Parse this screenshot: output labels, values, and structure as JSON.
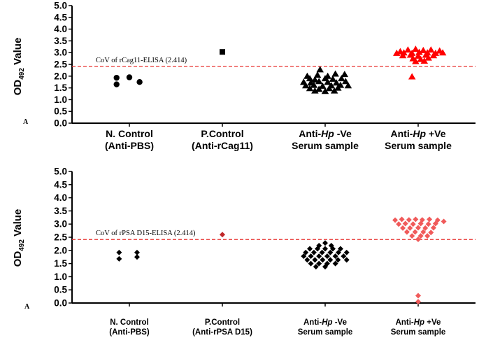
{
  "chart_data": [
    {
      "type": "scatter",
      "panel_label": "A",
      "ylabel_main": "OD",
      "ylabel_sub": "492",
      "ylabel_suffix": " Value",
      "ylim": [
        0,
        5
      ],
      "yticks": [
        "0.0",
        "0.5",
        "1.0",
        "1.5",
        "2.0",
        "2.5",
        "3.0",
        "3.5",
        "4.0",
        "4.5",
        "5.0"
      ],
      "cutoff": {
        "value": 2.414,
        "label": "CoV of rCag11-ELISA (2.414)",
        "color": "#e8312f"
      },
      "categories": [
        {
          "line1": "N. Control",
          "line2": "(Anti-PBS)",
          "line1_parts": [
            "N. Control"
          ]
        },
        {
          "line1": "P.Control",
          "line2": "(Anti-rCag11)",
          "line1_parts": [
            "P.Control"
          ]
        },
        {
          "line1_parts": [
            "Anti-",
            "Hp",
            " -Ve"
          ],
          "line2": "Serum sample"
        },
        {
          "line1_parts": [
            "Anti-",
            "Hp",
            " +Ve"
          ],
          "line2": "Serum sample"
        }
      ],
      "series": [
        {
          "name": "N. Control (Anti-PBS)",
          "marker": "circle",
          "color": "#000000",
          "points": [
            [
              -0.25,
              1.93
            ],
            [
              0.0,
              1.95
            ],
            [
              -0.25,
              1.65
            ],
            [
              0.2,
              1.75
            ]
          ]
        },
        {
          "name": "P.Control (Anti-rCag11)",
          "marker": "square",
          "color": "#000000",
          "points": [
            [
              0.0,
              3.03
            ]
          ]
        },
        {
          "name": "Anti-Hp -Ve Serum sample",
          "marker": "triangle",
          "color": "#000000",
          "points": [
            [
              -0.1,
              2.28
            ],
            [
              -0.35,
              2.0
            ],
            [
              -0.15,
              2.05
            ],
            [
              0.05,
              2.0
            ],
            [
              0.2,
              2.1
            ],
            [
              0.38,
              2.08
            ],
            [
              -0.3,
              1.9
            ],
            [
              -0.2,
              1.85
            ],
            [
              0.0,
              1.9
            ],
            [
              0.15,
              1.88
            ],
            [
              0.32,
              1.9
            ],
            [
              -0.42,
              1.75
            ],
            [
              -0.28,
              1.72
            ],
            [
              -0.12,
              1.78
            ],
            [
              0.05,
              1.75
            ],
            [
              0.22,
              1.72
            ],
            [
              0.4,
              1.78
            ],
            [
              -0.38,
              1.6
            ],
            [
              -0.22,
              1.62
            ],
            [
              -0.05,
              1.58
            ],
            [
              0.12,
              1.6
            ],
            [
              0.3,
              1.62
            ],
            [
              0.45,
              1.6
            ],
            [
              -0.3,
              1.48
            ],
            [
              -0.12,
              1.45
            ],
            [
              0.08,
              1.48
            ],
            [
              0.25,
              1.5
            ],
            [
              -0.2,
              1.38
            ],
            [
              0.0,
              1.36
            ],
            [
              0.18,
              1.38
            ]
          ]
        },
        {
          "name": "Anti-Hp +Ve Serum sample",
          "marker": "triangle",
          "color": "#ff0000",
          "points": [
            [
              -0.35,
              3.05
            ],
            [
              -0.2,
              3.12
            ],
            [
              -0.05,
              3.15
            ],
            [
              0.1,
              3.1
            ],
            [
              0.25,
              3.12
            ],
            [
              0.42,
              3.08
            ],
            [
              -0.42,
              2.98
            ],
            [
              -0.28,
              3.0
            ],
            [
              -0.12,
              2.98
            ],
            [
              0.02,
              3.02
            ],
            [
              0.18,
              3.0
            ],
            [
              0.34,
              2.98
            ],
            [
              0.48,
              3.0
            ],
            [
              -0.3,
              2.88
            ],
            [
              -0.15,
              2.9
            ],
            [
              0.0,
              2.86
            ],
            [
              0.15,
              2.9
            ],
            [
              0.3,
              2.88
            ],
            [
              -0.1,
              2.75
            ],
            [
              0.05,
              2.72
            ],
            [
              0.2,
              2.78
            ],
            [
              -0.05,
              2.63
            ],
            [
              0.12,
              2.65
            ],
            [
              -0.12,
              1.98
            ]
          ]
        }
      ]
    },
    {
      "type": "scatter",
      "panel_label": "A",
      "ylabel_main": "OD",
      "ylabel_sub": "492",
      "ylabel_suffix": " Value",
      "ylim": [
        0,
        5
      ],
      "yticks": [
        "0.0",
        "0.5",
        "1.0",
        "1.5",
        "2.0",
        "2.5",
        "3.0",
        "3.5",
        "4.0",
        "4.5",
        "5.0"
      ],
      "cutoff": {
        "value": 2.414,
        "label": "CoV of rPSA D15-ELISA (2.414)",
        "color": "#e8312f"
      },
      "categories": [
        {
          "line1_parts": [
            "N. Control"
          ],
          "line2": "(Anti-PBS)"
        },
        {
          "line1_parts": [
            "P.Control"
          ],
          "line2": "(Anti-rPSA D15)"
        },
        {
          "line1_parts": [
            "Anti-",
            "Hp",
            " -Ve"
          ],
          "line2": "Serum sample"
        },
        {
          "line1_parts": [
            "Anti-",
            "Hp",
            " +Ve"
          ],
          "line2": "Serum sample"
        }
      ],
      "series": [
        {
          "name": "N. Control (Anti-PBS)",
          "marker": "diamond",
          "color": "#000000",
          "points": [
            [
              -0.2,
              1.92
            ],
            [
              0.15,
              1.92
            ],
            [
              -0.2,
              1.68
            ],
            [
              0.15,
              1.75
            ]
          ]
        },
        {
          "name": "P.Control (Anti-rPSA D15)",
          "marker": "diamond",
          "color": "#c0282a",
          "points": [
            [
              0.0,
              2.6
            ]
          ]
        },
        {
          "name": "Anti-Hp -Ve Serum sample",
          "marker": "diamond",
          "color": "#000000",
          "points": [
            [
              0.0,
              2.28
            ],
            [
              -0.12,
              2.18
            ],
            [
              0.12,
              2.18
            ],
            [
              -0.3,
              2.06
            ],
            [
              -0.15,
              2.06
            ],
            [
              0.0,
              2.06
            ],
            [
              0.15,
              2.06
            ],
            [
              0.3,
              2.06
            ],
            [
              -0.38,
              1.92
            ],
            [
              -0.22,
              1.92
            ],
            [
              -0.06,
              1.92
            ],
            [
              0.1,
              1.92
            ],
            [
              0.26,
              1.92
            ],
            [
              0.42,
              1.92
            ],
            [
              -0.42,
              1.78
            ],
            [
              -0.28,
              1.78
            ],
            [
              -0.12,
              1.78
            ],
            [
              0.04,
              1.78
            ],
            [
              0.2,
              1.78
            ],
            [
              0.36,
              1.78
            ],
            [
              -0.35,
              1.64
            ],
            [
              -0.2,
              1.64
            ],
            [
              -0.05,
              1.64
            ],
            [
              0.1,
              1.64
            ],
            [
              0.25,
              1.64
            ],
            [
              0.42,
              1.64
            ],
            [
              -0.28,
              1.5
            ],
            [
              -0.12,
              1.5
            ],
            [
              0.04,
              1.5
            ],
            [
              0.2,
              1.5
            ],
            [
              -0.18,
              1.38
            ],
            [
              0.0,
              1.38
            ]
          ]
        },
        {
          "name": "Anti-Hp +Ve Serum sample",
          "marker": "diamond",
          "color": "#f05a5a",
          "points": [
            [
              -0.45,
              3.15
            ],
            [
              -0.32,
              3.18
            ],
            [
              -0.18,
              3.16
            ],
            [
              -0.05,
              3.18
            ],
            [
              0.08,
              3.16
            ],
            [
              0.22,
              3.18
            ],
            [
              0.38,
              3.15
            ],
            [
              0.5,
              3.1
            ],
            [
              -0.38,
              3.0
            ],
            [
              -0.25,
              3.02
            ],
            [
              -0.1,
              3.0
            ],
            [
              0.05,
              3.02
            ],
            [
              0.2,
              3.0
            ],
            [
              0.34,
              3.02
            ],
            [
              -0.3,
              2.85
            ],
            [
              -0.16,
              2.85
            ],
            [
              0.0,
              2.86
            ],
            [
              0.14,
              2.85
            ],
            [
              0.3,
              2.86
            ],
            [
              -0.22,
              2.7
            ],
            [
              -0.06,
              2.7
            ],
            [
              0.1,
              2.7
            ],
            [
              0.25,
              2.68
            ],
            [
              -0.12,
              2.55
            ],
            [
              0.05,
              2.55
            ],
            [
              0.18,
              2.55
            ],
            [
              0.0,
              2.42
            ],
            [
              0.0,
              0.28
            ],
            [
              0.0,
              0.05
            ]
          ]
        }
      ]
    }
  ]
}
